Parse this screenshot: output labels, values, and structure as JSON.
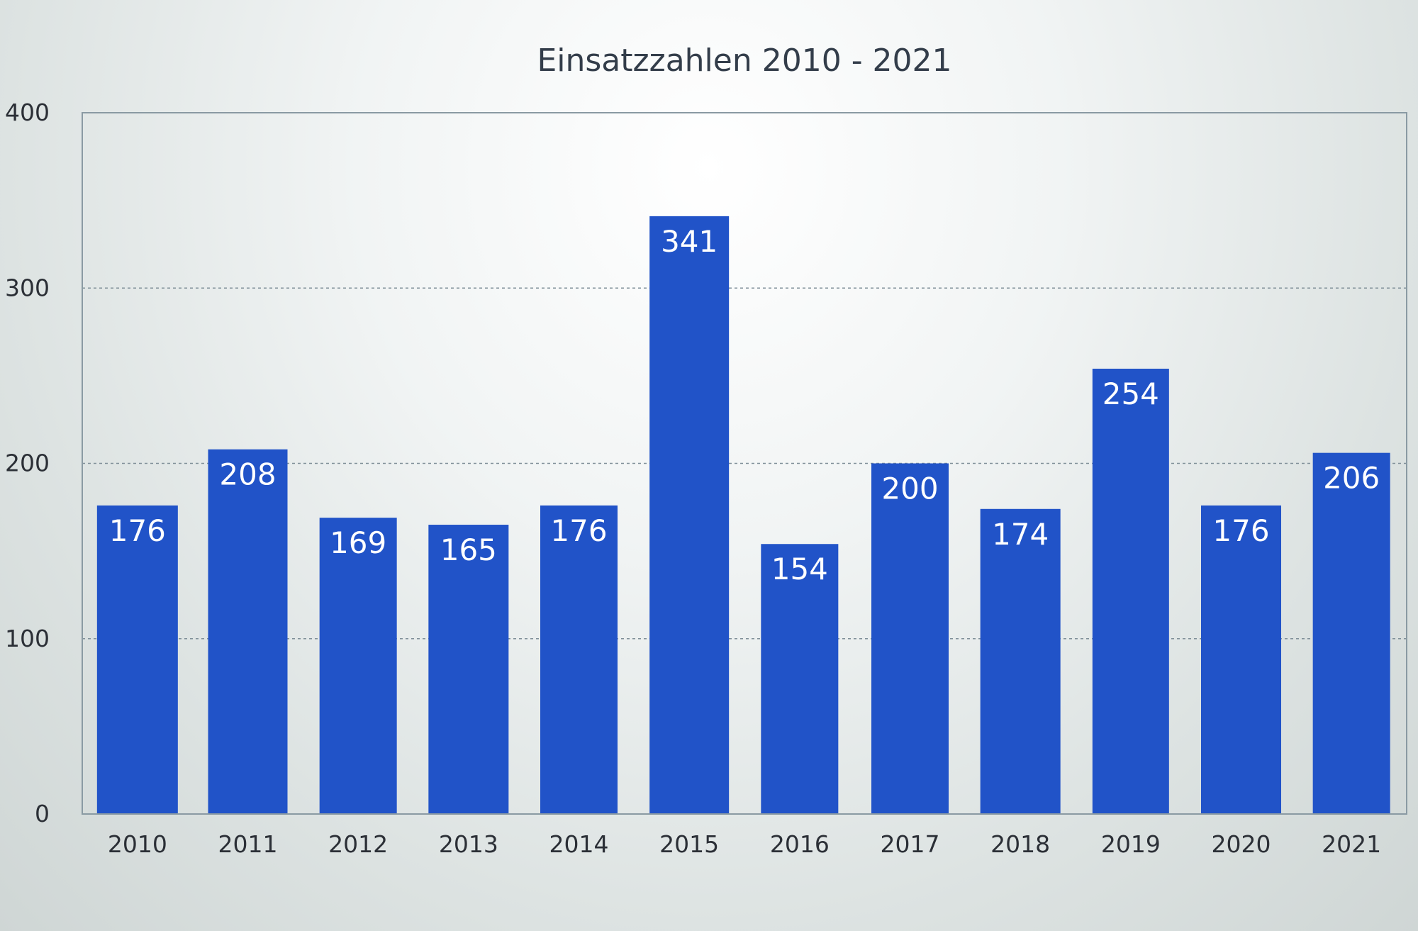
{
  "chart_data": {
    "type": "bar",
    "title": "Einsatzzahlen 2010 - 2021",
    "xlabel": "",
    "ylabel": "",
    "categories": [
      "2010",
      "2011",
      "2012",
      "2013",
      "2014",
      "2015",
      "2016",
      "2017",
      "2018",
      "2019",
      "2020",
      "2021"
    ],
    "values": [
      176,
      208,
      169,
      165,
      176,
      341,
      154,
      200,
      174,
      254,
      176,
      206
    ],
    "data_labels": [
      "176",
      "208",
      "169",
      "165",
      "176",
      "341",
      "154",
      "200",
      "174",
      "254",
      "176",
      "206"
    ],
    "ylim": [
      0,
      400
    ],
    "yticks": [
      0,
      100,
      200,
      300,
      400
    ],
    "ytick_labels": [
      "0",
      "100",
      "200",
      "300",
      "400"
    ],
    "grid": true,
    "grid_style": "dotted horizontal",
    "legend": "none",
    "colors": {
      "bar": "#2153c8",
      "axis": "#8a9aa3",
      "grid": "#7f8f98",
      "data_label": "#ffffff",
      "tick_label": "#2b2f36",
      "title": "#333d4a"
    }
  }
}
